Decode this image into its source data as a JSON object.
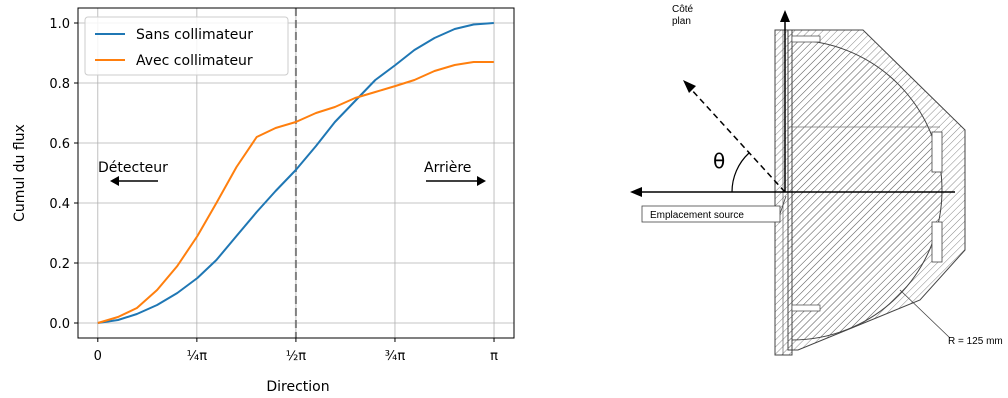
{
  "chart_data": {
    "type": "line",
    "xlabel": "Direction",
    "ylabel": "Cumul du flux",
    "xlim": [
      0,
      3.1416
    ],
    "ylim": [
      0,
      1.0
    ],
    "x_ticks": [
      0,
      0.7854,
      1.5708,
      2.3562,
      3.1416
    ],
    "x_tick_labels": [
      "0",
      "¼π",
      "½π",
      "¾π",
      "π"
    ],
    "y_ticks": [
      0.0,
      0.2,
      0.4,
      0.6,
      0.8,
      1.0
    ],
    "y_tick_labels": [
      "0.0",
      "0.2",
      "0.4",
      "0.6",
      "0.8",
      "1.0"
    ],
    "grid": true,
    "legend": "top-left",
    "vline_x": 1.5708,
    "annotations": {
      "left": "Détecteur",
      "right": "Arrière"
    },
    "colors": {
      "sans": "#1f77b4",
      "avec": "#ff7f0e",
      "vline": "#808080"
    },
    "series": [
      {
        "name": "Sans collimateur",
        "x": [
          0.0,
          0.16,
          0.31,
          0.47,
          0.63,
          0.79,
          0.94,
          1.1,
          1.26,
          1.41,
          1.57,
          1.73,
          1.88,
          2.04,
          2.2,
          2.36,
          2.51,
          2.67,
          2.83,
          2.98,
          3.14
        ],
        "y": [
          0.0,
          0.01,
          0.03,
          0.06,
          0.1,
          0.15,
          0.21,
          0.29,
          0.37,
          0.44,
          0.51,
          0.59,
          0.67,
          0.74,
          0.81,
          0.86,
          0.91,
          0.95,
          0.98,
          0.995,
          1.0
        ]
      },
      {
        "name": "Avec collimateur",
        "x": [
          0.0,
          0.16,
          0.31,
          0.47,
          0.63,
          0.79,
          0.94,
          1.1,
          1.26,
          1.41,
          1.57,
          1.73,
          1.88,
          2.04,
          2.2,
          2.36,
          2.51,
          2.67,
          2.83,
          2.98,
          3.14
        ],
        "y": [
          0.0,
          0.02,
          0.05,
          0.11,
          0.19,
          0.29,
          0.4,
          0.52,
          0.62,
          0.65,
          0.67,
          0.7,
          0.72,
          0.75,
          0.77,
          0.79,
          0.81,
          0.84,
          0.86,
          0.87,
          0.87
        ]
      }
    ]
  },
  "diagram": {
    "label_cote_plan_1": "Côté",
    "label_cote_plan_2": "plan",
    "label_theta": "θ",
    "label_source": "Emplacement source",
    "label_radius": "R = 125 mm"
  }
}
